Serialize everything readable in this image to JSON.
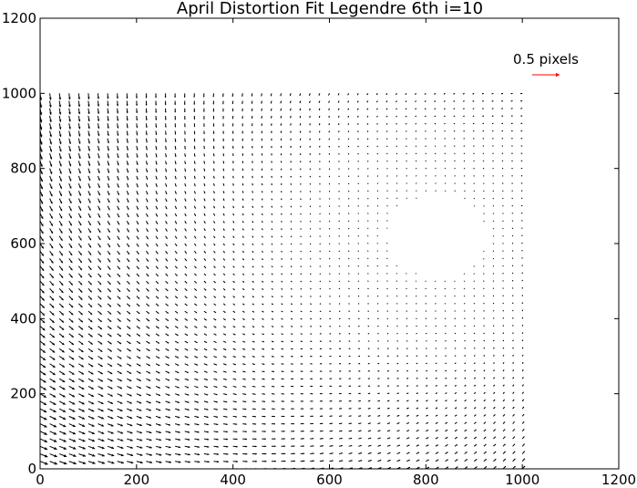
{
  "chart_data": {
    "type": "quiver",
    "title": "April Distortion Fit Legendre 6th i=10",
    "xlabel": "",
    "ylabel": "",
    "xlim": [
      0,
      1200
    ],
    "ylim": [
      0,
      1200
    ],
    "xticks": [
      "0",
      "200",
      "400",
      "600",
      "800",
      "1000",
      "1200"
    ],
    "yticks": [
      "0",
      "200",
      "400",
      "600",
      "800",
      "1000",
      "1200"
    ],
    "grid": false,
    "legend": "none",
    "field": {
      "x_range": [
        0,
        1000
      ],
      "y_range": [
        0,
        1000
      ],
      "step": 20,
      "sink": [
        840,
        620
      ],
      "shown_scale_data_units_per_pixel": 0.04
    },
    "quiver_key": {
      "label": "0.5 pixels",
      "color": "#ff0000",
      "placement": "top-right"
    },
    "colors": {
      "arrows": "#000000",
      "key_arrow": "#ff0000",
      "axes": "#000000",
      "background": "#ffffff"
    }
  }
}
